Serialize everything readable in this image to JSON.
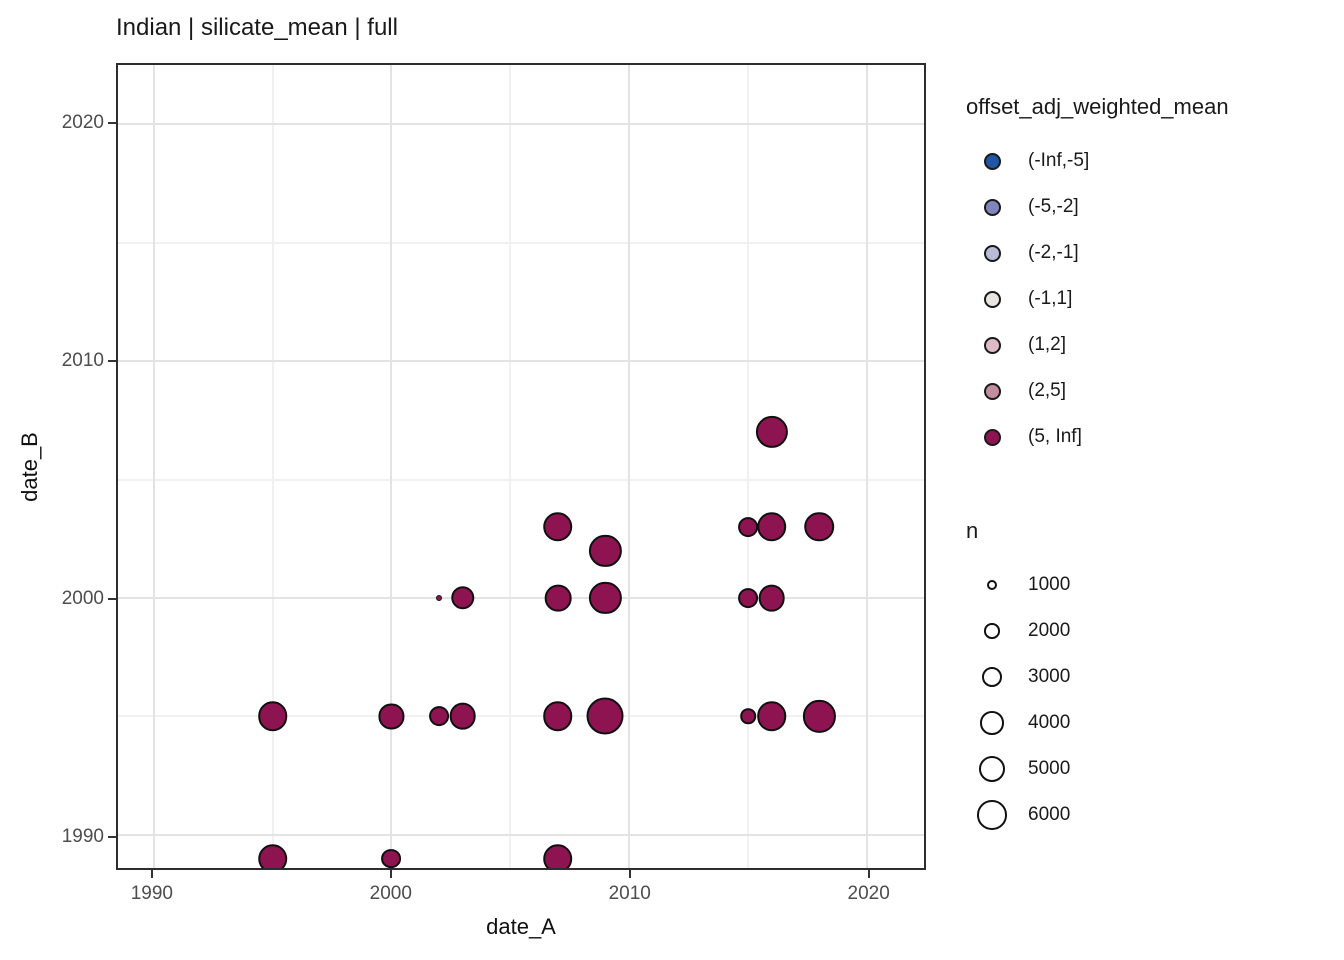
{
  "chart_data": {
    "type": "scatter",
    "title": "Indian | silicate_mean | full",
    "xlabel": "date_A",
    "ylabel": "date_B",
    "xlim": [
      1988.5,
      2022.4
    ],
    "ylim": [
      1988.6,
      2022.5
    ],
    "x_major_ticks": [
      1990,
      2000,
      2010,
      2020
    ],
    "x_minor_gridlines": [
      1995,
      2005,
      2015
    ],
    "y_major_ticks": [
      1990,
      2000,
      2010,
      2020
    ],
    "y_minor_gridlines": [
      1995,
      2005,
      2015
    ],
    "grid": true,
    "legend_position": "right",
    "point_stroke_color": "#101010",
    "color_legend": {
      "title": "offset_adj_weighted_mean",
      "bins": [
        {
          "label": "(-Inf,-5]",
          "color": "#2056a3"
        },
        {
          "label": "(-5,-2]",
          "color": "#7e86bd"
        },
        {
          "label": "(-2,-1]",
          "color": "#b8bcd7"
        },
        {
          "label": "(-1,1]",
          "color": "#e8e6e2"
        },
        {
          "label": "(1,2]",
          "color": "#dcbac6"
        },
        {
          "label": "(2,5]",
          "color": "#c28da0"
        },
        {
          "label": "(5, Inf]",
          "color": "#8e1451"
        }
      ]
    },
    "size_legend": {
      "title": "n",
      "values": [
        1000,
        2000,
        3000,
        4000,
        5000,
        6000
      ]
    },
    "size_scale": {
      "n_domain": [
        500,
        9000
      ],
      "radius_px": [
        3,
        18.5
      ]
    },
    "points": [
      {
        "date_A": 1995,
        "date_B": 1989,
        "n": 6000,
        "bin": "(5, Inf]"
      },
      {
        "date_A": 2000,
        "date_B": 1989,
        "n": 3000,
        "bin": "(5, Inf]"
      },
      {
        "date_A": 2007,
        "date_B": 1989,
        "n": 6000,
        "bin": "(5, Inf]"
      },
      {
        "date_A": 1995,
        "date_B": 1995,
        "n": 6000,
        "bin": "(5, Inf]"
      },
      {
        "date_A": 2000,
        "date_B": 1995,
        "n": 4500,
        "bin": "(5, Inf]"
      },
      {
        "date_A": 2002,
        "date_B": 1995,
        "n": 3000,
        "bin": "(5, Inf]"
      },
      {
        "date_A": 2003,
        "date_B": 1995,
        "n": 5000,
        "bin": "(5, Inf]"
      },
      {
        "date_A": 2007,
        "date_B": 1995,
        "n": 6000,
        "bin": "(5, Inf]"
      },
      {
        "date_A": 2009,
        "date_B": 1995,
        "n": 9000,
        "bin": "(5, Inf]"
      },
      {
        "date_A": 2015,
        "date_B": 1995,
        "n": 2000,
        "bin": "(5, Inf]"
      },
      {
        "date_A": 2016,
        "date_B": 1995,
        "n": 6000,
        "bin": "(5, Inf]"
      },
      {
        "date_A": 2018,
        "date_B": 1995,
        "n": 7000,
        "bin": "(5, Inf]"
      },
      {
        "date_A": 2002,
        "date_B": 2000,
        "n": 500,
        "bin": "(5, Inf]"
      },
      {
        "date_A": 2003,
        "date_B": 2000,
        "n": 4000,
        "bin": "(5, Inf]"
      },
      {
        "date_A": 2007,
        "date_B": 2000,
        "n": 5000,
        "bin": "(5, Inf]"
      },
      {
        "date_A": 2009,
        "date_B": 2000,
        "n": 7000,
        "bin": "(5, Inf]"
      },
      {
        "date_A": 2015,
        "date_B": 2000,
        "n": 3000,
        "bin": "(5, Inf]"
      },
      {
        "date_A": 2016,
        "date_B": 2000,
        "n": 5000,
        "bin": "(5, Inf]"
      },
      {
        "date_A": 2009,
        "date_B": 2002,
        "n": 7000,
        "bin": "(5, Inf]"
      },
      {
        "date_A": 2007,
        "date_B": 2003,
        "n": 6000,
        "bin": "(5, Inf]"
      },
      {
        "date_A": 2015,
        "date_B": 2003,
        "n": 3000,
        "bin": "(5, Inf]"
      },
      {
        "date_A": 2016,
        "date_B": 2003,
        "n": 6000,
        "bin": "(5, Inf]"
      },
      {
        "date_A": 2018,
        "date_B": 2003,
        "n": 6000,
        "bin": "(5, Inf]"
      },
      {
        "date_A": 2016,
        "date_B": 2007,
        "n": 7000,
        "bin": "(5, Inf]"
      }
    ]
  }
}
